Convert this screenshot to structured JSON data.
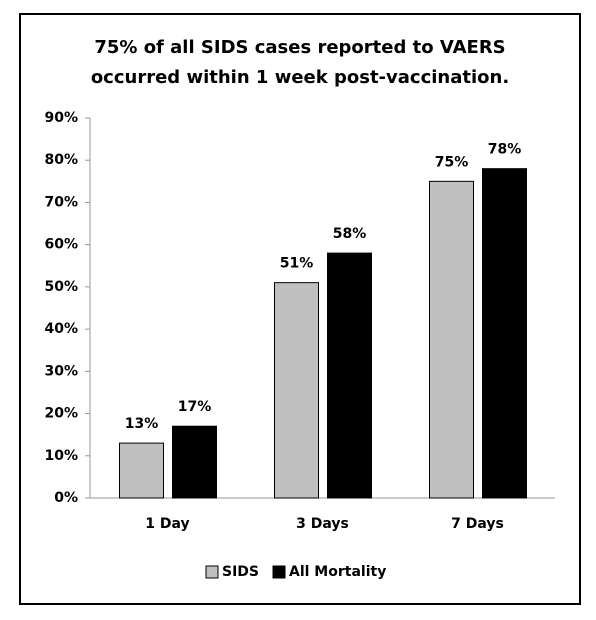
{
  "chart_data": {
    "type": "bar",
    "title": [
      "75% of all SIDS cases reported to VAERS",
      "occurred within 1 week post-vaccination."
    ],
    "categories": [
      "1 Day",
      "3 Days",
      "7 Days"
    ],
    "series": [
      {
        "name": "SIDS",
        "color": "#c0c0c0",
        "values": [
          13,
          51,
          75
        ],
        "value_labels": [
          "13%",
          "51%",
          "75%"
        ]
      },
      {
        "name": "All Mortality",
        "color": "#000000",
        "values": [
          17,
          58,
          78
        ],
        "value_labels": [
          "17%",
          "58%",
          "78%"
        ]
      }
    ],
    "ylim": [
      0,
      90
    ],
    "yticks": [
      {
        "value": 0,
        "label": "0%"
      },
      {
        "value": 10,
        "label": "10%"
      },
      {
        "value": 20,
        "label": "20%"
      },
      {
        "value": 30,
        "label": "30%"
      },
      {
        "value": 40,
        "label": "40%"
      },
      {
        "value": 50,
        "label": "50%"
      },
      {
        "value": 60,
        "label": "60%"
      },
      {
        "value": 70,
        "label": "70%"
      },
      {
        "value": 80,
        "label": "80%"
      },
      {
        "value": 90,
        "label": "90%"
      }
    ],
    "grid": false,
    "legend": "bottom"
  }
}
